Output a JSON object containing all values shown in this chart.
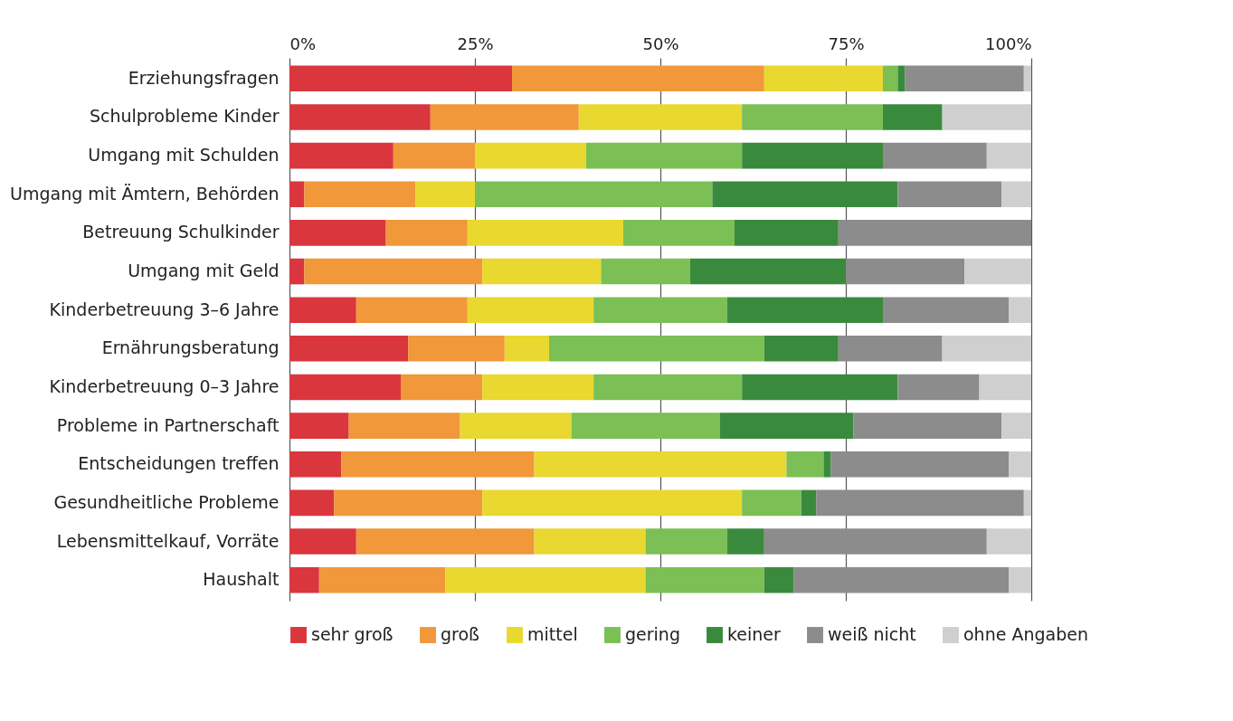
{
  "chart_data": {
    "type": "bar",
    "orientation": "horizontal",
    "stacked": true,
    "legend": "bottom",
    "grid": "x",
    "categories": [
      "Erziehungsfragen",
      "Schulprobleme Kinder",
      "Umgang mit Schulden",
      "Umgang mit Ämtern, Behörden",
      "Betreuung Schulkinder",
      "Umgang mit Geld",
      "Kinderbetreuung 3–6 Jahre",
      "Ernährungsberatung",
      "Kinderbetreuung 0–3 Jahre",
      "Probleme in Partnerschaft",
      "Entscheidungen treffen",
      "Gesundheitliche Probleme",
      "Lebensmittelkauf, Vorräte",
      "Haushalt"
    ],
    "xlim": [
      0,
      100
    ],
    "xticks": [
      {
        "value": 0,
        "label": "0%"
      },
      {
        "value": 25,
        "label": "25%"
      },
      {
        "value": 50,
        "label": "50%"
      },
      {
        "value": 75,
        "label": "75%"
      },
      {
        "value": 100,
        "label": "100%"
      }
    ],
    "series": [
      {
        "name": "sehr groß",
        "color": "#d9363e",
        "values": [
          30,
          19,
          14,
          2,
          13,
          2,
          9,
          16,
          15,
          8,
          7,
          6,
          9,
          4
        ]
      },
      {
        "name": "groß",
        "color": "#f0983a",
        "values": [
          34,
          20,
          11,
          15,
          11,
          24,
          15,
          13,
          11,
          15,
          26,
          20,
          24,
          17
        ]
      },
      {
        "name": "mittel",
        "color": "#e8d830",
        "values": [
          16,
          22,
          15,
          8,
          21,
          16,
          17,
          6,
          15,
          15,
          34,
          35,
          15,
          27
        ]
      },
      {
        "name": "gering",
        "color": "#7bbf55",
        "values": [
          2,
          19,
          21,
          32,
          15,
          12,
          18,
          29,
          20,
          20,
          5,
          8,
          11,
          16
        ]
      },
      {
        "name": "keiner",
        "color": "#3a8a3e",
        "values": [
          1,
          8,
          19,
          25,
          14,
          21,
          21,
          10,
          21,
          18,
          1,
          2,
          5,
          4
        ]
      },
      {
        "name": "weiß nicht",
        "color": "#8c8c8c",
        "values": [
          16,
          0,
          14,
          14,
          26,
          16,
          17,
          14,
          11,
          20,
          24,
          28,
          30,
          29
        ]
      },
      {
        "name": "ohne Angaben",
        "color": "#cfcfcf",
        "values": [
          1,
          12,
          6,
          4,
          0,
          9,
          3,
          12,
          7,
          4,
          3,
          1,
          6,
          3
        ]
      }
    ]
  }
}
